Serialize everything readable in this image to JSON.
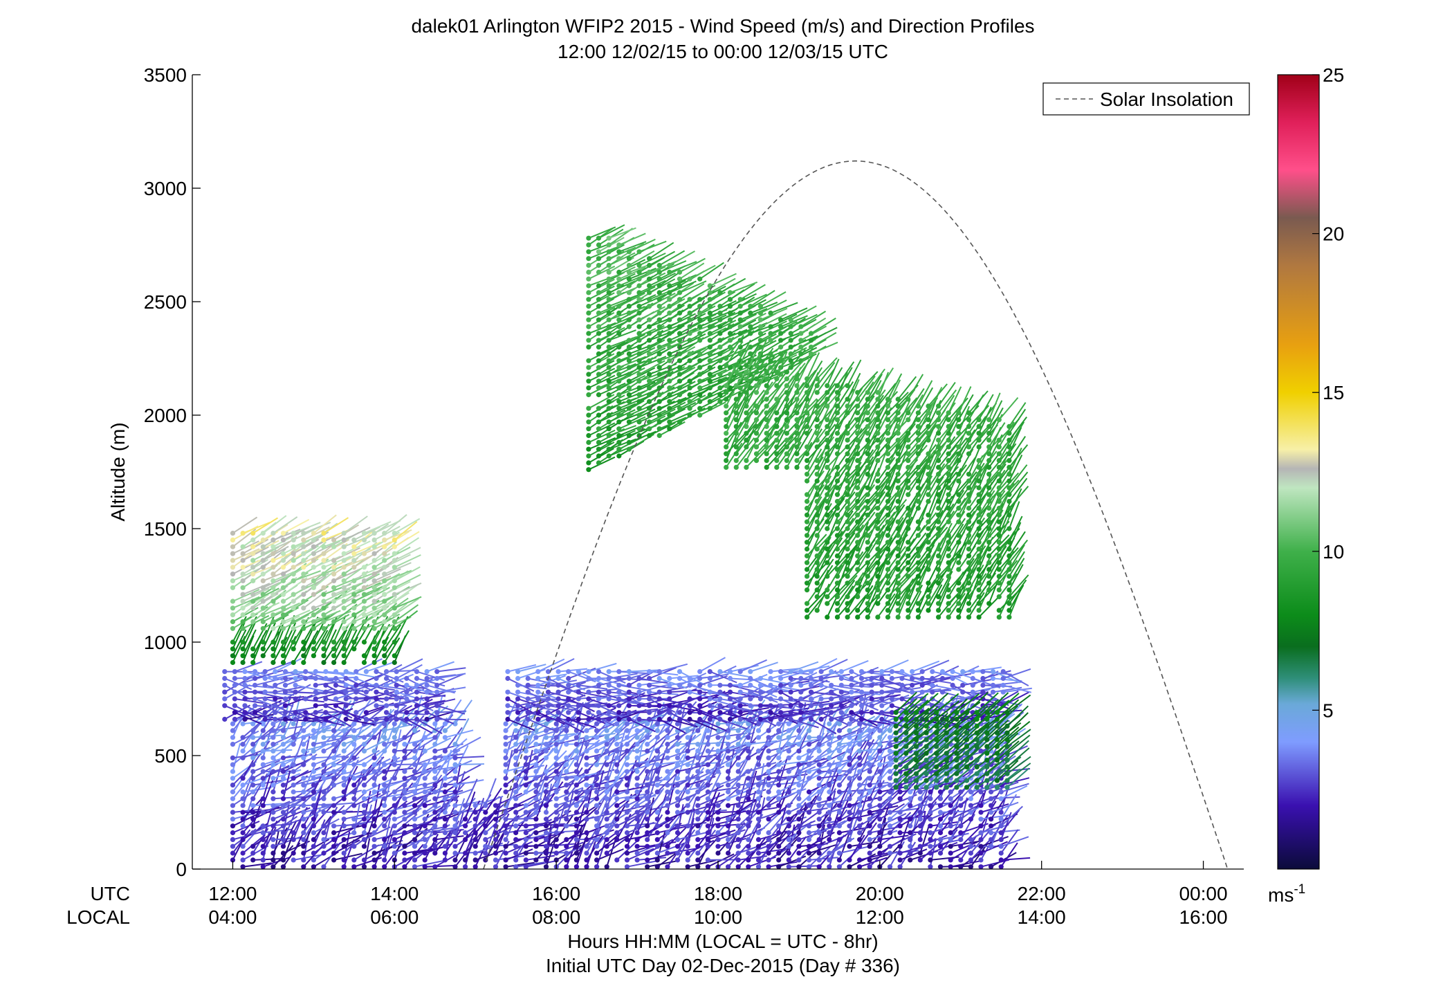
{
  "chart_data": {
    "type": "wind-barb-profile",
    "title": "dalek01 Arlington WFIP2 2015 - Wind Speed (m/s) and Direction Profiles",
    "subtitle": "12:00 12/02/15 to 00:00 12/03/15  UTC",
    "ylabel": "Altitude (m)",
    "xlabel": "Hours HH:MM  (LOCAL = UTC - 8hr)",
    "footer": "Initial UTC Day 02-Dec-2015 (Day # 336)",
    "ylim": [
      0,
      3500
    ],
    "y_ticks": [
      "0",
      "500",
      "1000",
      "1500",
      "2000",
      "2500",
      "3000",
      "3500"
    ],
    "xlim_hours_utc": [
      11.5,
      24.5
    ],
    "utc_row_label": "UTC",
    "local_row_label": "LOCAL",
    "utc_ticks": [
      "12:00",
      "14:00",
      "16:00",
      "18:00",
      "20:00",
      "22:00",
      "00:00"
    ],
    "local_ticks": [
      "04:00",
      "06:00",
      "08:00",
      "10:00",
      "12:00",
      "14:00",
      "16:00"
    ],
    "legend": {
      "entry": "Solar Insolation",
      "placement": "top-right",
      "style": "dashed gray line"
    },
    "colorbar": {
      "range": [
        0,
        25
      ],
      "tick_labels": [
        "5",
        "10",
        "15",
        "20",
        "25"
      ],
      "unit_label": "ms",
      "unit_exponent": "-1",
      "stops": [
        {
          "v": 0,
          "c": "#0b0b3a"
        },
        {
          "v": 2,
          "c": "#3a10b0"
        },
        {
          "v": 4,
          "c": "#7f9cff"
        },
        {
          "v": 5.2,
          "c": "#6aa9d8"
        },
        {
          "v": 6,
          "c": "#2f8f7a"
        },
        {
          "v": 7,
          "c": "#0a6e1e"
        },
        {
          "v": 8,
          "c": "#0c8c1a"
        },
        {
          "v": 10,
          "c": "#3fb04a"
        },
        {
          "v": 12,
          "c": "#bfe6c0"
        },
        {
          "v": 12.6,
          "c": "#b5b5b5"
        },
        {
          "v": 13.2,
          "c": "#f7f0a8"
        },
        {
          "v": 15,
          "c": "#f0d000"
        },
        {
          "v": 16.5,
          "c": "#e8a010"
        },
        {
          "v": 19,
          "c": "#b07840"
        },
        {
          "v": 20.5,
          "c": "#7a5a50"
        },
        {
          "v": 22,
          "c": "#ff4f8a"
        },
        {
          "v": 23.5,
          "c": "#e0205a"
        },
        {
          "v": 25,
          "c": "#a00018"
        }
      ]
    },
    "solar_insolation": {
      "peak_hour_utc": 19.8,
      "peak_altitude": 3120,
      "start_hour_utc": 15.1,
      "end_hour_utc": 24.3
    },
    "wind_regions": [
      {
        "name": "boundary-layer",
        "t": [
          12.0,
          21.6
        ],
        "h": [
          0,
          650
        ],
        "speed": [
          1,
          5
        ],
        "dir": [
          190,
          270
        ]
      },
      {
        "name": "low-jet-layer",
        "t": [
          11.9,
          21.6
        ],
        "h": [
          650,
          880
        ],
        "speed": [
          1.5,
          4.5
        ],
        "dir": [
          240,
          300
        ]
      },
      {
        "name": "morning-green",
        "t": [
          12.0,
          14.1
        ],
        "h": [
          900,
          1000
        ],
        "speed": [
          7,
          9
        ],
        "dir": [
          200,
          215
        ]
      },
      {
        "name": "morning-upper",
        "t": [
          12.0,
          14.1
        ],
        "h": [
          1050,
          1480
        ],
        "speed": [
          10,
          14
        ],
        "dir": [
          230,
          250
        ]
      },
      {
        "name": "upper-plume",
        "t": [
          16.4,
          19.2
        ],
        "h": [
          1750,
          2800
        ],
        "speed": [
          8,
          11
        ],
        "dir": [
          235,
          250
        ]
      },
      {
        "name": "afternoon-upper",
        "t": [
          18.1,
          21.6
        ],
        "h": [
          1100,
          2250
        ],
        "speed": [
          8,
          10.5
        ],
        "dir": [
          200,
          225
        ]
      },
      {
        "name": "surface-green",
        "t": [
          20.2,
          21.6
        ],
        "h": [
          350,
          700
        ],
        "speed": [
          6,
          8
        ],
        "dir": [
          225,
          235
        ]
      }
    ]
  }
}
